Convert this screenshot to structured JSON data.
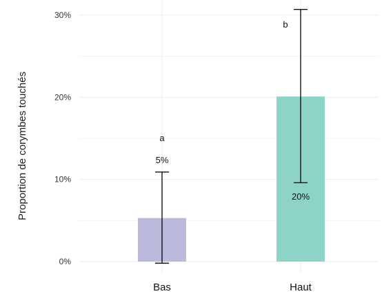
{
  "chart_data": {
    "type": "bar",
    "title": "",
    "xlabel": "",
    "ylabel": "Proportion de corymbes touchés",
    "categories": [
      "Bas",
      "Haut"
    ],
    "values": [
      5.3,
      20.1
    ],
    "error_low": [
      -0.2,
      9.6
    ],
    "error_high": [
      10.9,
      30.7
    ],
    "value_labels": [
      "5%",
      "20%"
    ],
    "significance_letters": [
      "a",
      "b"
    ],
    "colors": [
      "#bcbadc",
      "#8dd3c6"
    ],
    "ylim": [
      -1.0,
      32.0
    ],
    "yticks": [
      0,
      10,
      20,
      30
    ],
    "ytick_labels": [
      "0%",
      "10%",
      "20%",
      "30%"
    ],
    "grid": true,
    "legend": "none",
    "grid_color": "#ebebeb"
  }
}
